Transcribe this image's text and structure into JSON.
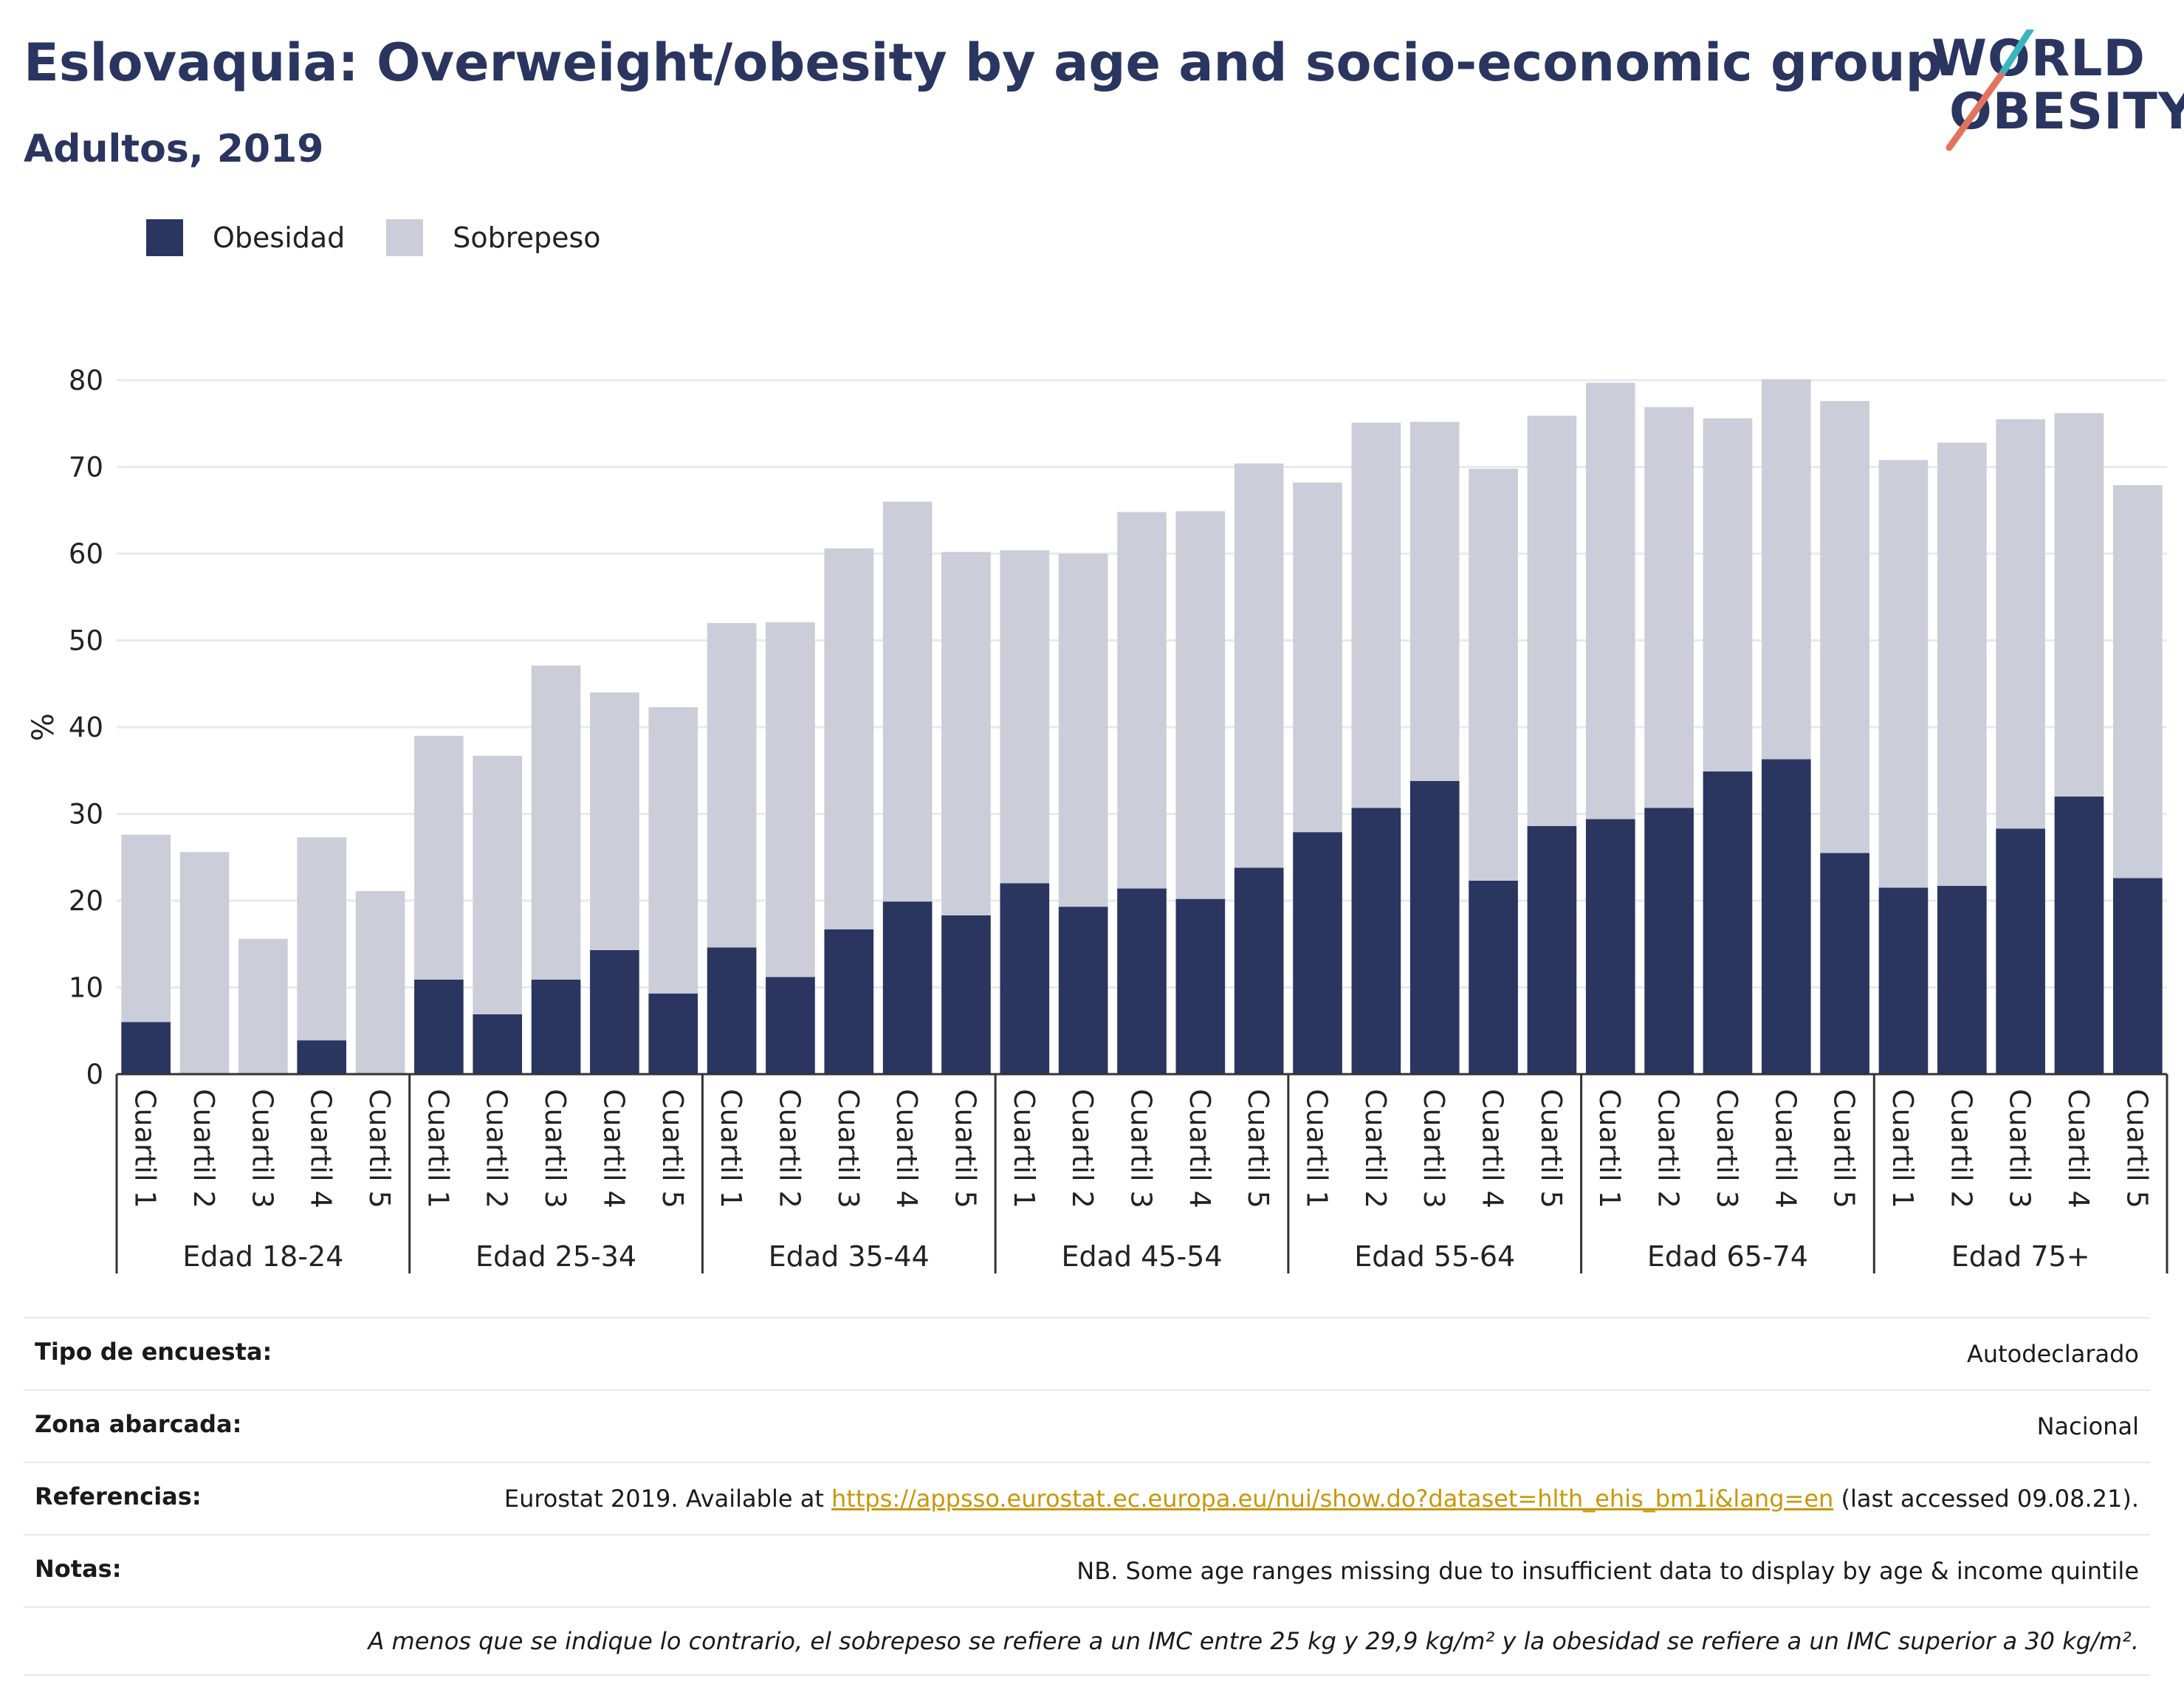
{
  "title": "Eslovaquia: Overweight/obesity by age and socio-economic group",
  "subtitle": "Adultos, 2019",
  "logo": {
    "line1": "WORLD",
    "line2": "OBESITY",
    "colors": {
      "teal": "#3ab5c0",
      "coral": "#e4735e"
    }
  },
  "colors": {
    "obesity": "#2a3560",
    "overweight": "#cbcdd9",
    "grid": "#e9eaef",
    "title": "#2a3560"
  },
  "chart_data": {
    "type": "bar",
    "stacked": true,
    "ylabel": "%",
    "ylim": [
      0,
      80
    ],
    "yticks": [
      0,
      10,
      20,
      30,
      40,
      50,
      60,
      70,
      80
    ],
    "legend": {
      "placement": "top-left",
      "items": [
        "Obesidad",
        "Sobrepeso"
      ]
    },
    "grid": true,
    "groups": [
      "Edad 18-24",
      "Edad 25-34",
      "Edad 35-44",
      "Edad 45-54",
      "Edad 55-64",
      "Edad 65-74",
      "Edad 75+"
    ],
    "categories": [
      "Cuartil 1",
      "Cuartil 2",
      "Cuartil 3",
      "Cuartil 4",
      "Cuartil 5"
    ],
    "series": [
      {
        "name": "Obesidad",
        "values": [
          [
            6.0,
            0,
            0,
            3.9,
            0
          ],
          [
            10.9,
            6.9,
            10.9,
            14.3,
            9.3
          ],
          [
            14.6,
            11.2,
            16.7,
            19.9,
            18.3
          ],
          [
            22.0,
            19.3,
            21.4,
            20.2,
            23.8
          ],
          [
            27.9,
            30.7,
            33.8,
            22.3,
            28.6
          ],
          [
            29.4,
            30.7,
            34.9,
            36.3,
            25.5
          ],
          [
            21.5,
            21.7,
            28.3,
            32.0,
            22.6
          ]
        ]
      },
      {
        "name": "Sobrepeso",
        "values": [
          [
            21.6,
            25.6,
            15.6,
            23.4,
            21.1
          ],
          [
            28.1,
            29.8,
            36.2,
            29.7,
            33.0
          ],
          [
            37.4,
            40.9,
            43.9,
            46.1,
            41.9
          ],
          [
            38.4,
            40.7,
            43.4,
            44.7,
            46.6
          ],
          [
            40.3,
            44.4,
            41.4,
            47.5,
            47.3
          ],
          [
            50.3,
            46.2,
            40.7,
            43.8,
            52.1
          ],
          [
            49.3,
            51.1,
            47.2,
            44.2,
            45.3
          ]
        ]
      }
    ]
  },
  "info": {
    "survey_label": "Tipo de encuesta:",
    "survey_value": "Autodeclarado",
    "area_label": "Zona abarcada:",
    "area_value": "Nacional",
    "refs_label": "Referencias:",
    "refs_prefix": "Eurostat 2019. Available at ",
    "refs_link": "https://appsso.eurostat.ec.europa.eu/nui/show.do?dataset=hlth_ehis_bm1i&lang=en",
    "refs_suffix": " (last accessed 09.08.21).",
    "notes_label": "Notas:",
    "notes_value": "NB. Some age ranges missing due to insufficient data to display by age & income quintile",
    "footnote": "A menos que se indique lo contrario, el sobrepeso se refiere a un IMC entre 25 kg y 29,9 kg/m² y la obesidad se refiere a un IMC superior a 30 kg/m²."
  }
}
